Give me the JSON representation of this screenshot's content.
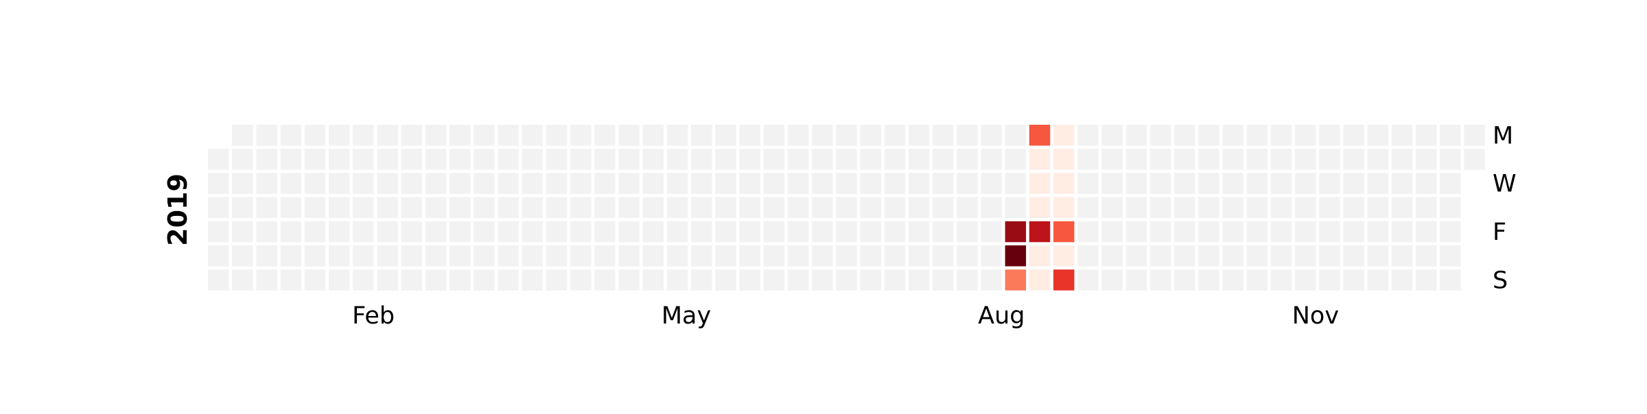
{
  "chart_data": {
    "type": "heatmap",
    "year": "2019",
    "x_tick_labels": [
      "Feb",
      "May",
      "Aug",
      "Nov"
    ],
    "y_tick_labels": [
      "M",
      "W",
      "F",
      "S"
    ],
    "weekday_rows": [
      "Mon",
      "Tue",
      "Wed",
      "Thu",
      "Fri",
      "Sat",
      "Sun"
    ],
    "week_count": 53,
    "first_weekday_of_year": "Tue",
    "empty_cell_color": "#f2f2f2",
    "colormap": "Reds",
    "value_range": [
      0,
      1
    ],
    "grid": false,
    "nonzero_cells": [
      {
        "week": 34,
        "weekday": "Mon",
        "value": 0.55
      },
      {
        "week": 34,
        "weekday": "Tue",
        "value": 0.05
      },
      {
        "week": 34,
        "weekday": "Wed",
        "value": 0.05
      },
      {
        "week": 34,
        "weekday": "Thu",
        "value": 0.05
      },
      {
        "week": 34,
        "weekday": "Fri",
        "value": 0.8
      },
      {
        "week": 34,
        "weekday": "Sat",
        "value": 0.05
      },
      {
        "week": 34,
        "weekday": "Sun",
        "value": 0.05
      },
      {
        "week": 35,
        "weekday": "Mon",
        "value": 0.05
      },
      {
        "week": 35,
        "weekday": "Tue",
        "value": 0.05
      },
      {
        "week": 35,
        "weekday": "Wed",
        "value": 0.05
      },
      {
        "week": 35,
        "weekday": "Thu",
        "value": 0.05
      },
      {
        "week": 35,
        "weekday": "Fri",
        "value": 0.55
      },
      {
        "week": 35,
        "weekday": "Sat",
        "value": 0.05
      },
      {
        "week": 35,
        "weekday": "Sun",
        "value": 0.65
      },
      {
        "week": 33,
        "weekday": "Fri",
        "value": 0.9
      },
      {
        "week": 33,
        "weekday": "Sat",
        "value": 1.0
      },
      {
        "week": 33,
        "weekday": "Sun",
        "value": 0.45
      }
    ]
  }
}
